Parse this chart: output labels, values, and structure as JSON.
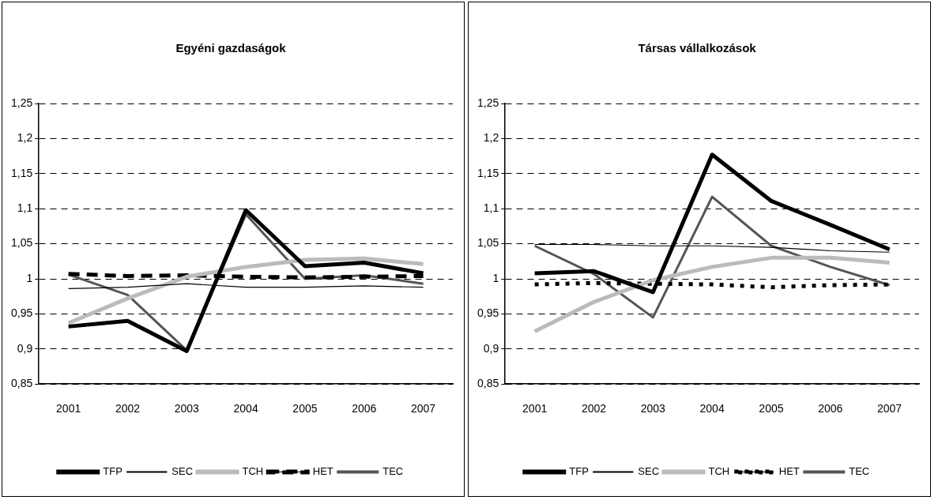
{
  "chart_data": [
    {
      "type": "line",
      "title": "Egyéni gazdaságok",
      "categories": [
        "2001",
        "2002",
        "2003",
        "2004",
        "2005",
        "2006",
        "2007"
      ],
      "ylim": [
        0.85,
        1.25
      ],
      "yticks": [
        {
          "value": 0.85,
          "label": "0,85"
        },
        {
          "value": 0.9,
          "label": "0,9"
        },
        {
          "value": 0.95,
          "label": "0,95"
        },
        {
          "value": 1,
          "label": "1"
        },
        {
          "value": 1.05,
          "label": "1,05"
        },
        {
          "value": 1.1,
          "label": "1,1"
        },
        {
          "value": 1.15,
          "label": "1,15"
        },
        {
          "value": 1.2,
          "label": "1,2"
        },
        {
          "value": 1.25,
          "label": "1,25"
        }
      ],
      "grid": "y",
      "legend": "bottom",
      "marker": "none",
      "series": [
        {
          "name": "TFP",
          "color": "#000000",
          "line_style": "solid",
          "values": [
            0.932,
            0.94,
            0.897,
            1.098,
            1.018,
            1.023,
            1.008
          ]
        },
        {
          "name": "SEC",
          "color": "#000000",
          "line_style": "solid",
          "values": [
            0.986,
            0.988,
            0.993,
            0.988,
            0.988,
            0.99,
            0.988
          ]
        },
        {
          "name": "TCH",
          "color": "#bbbbbb",
          "line_style": "solid",
          "values": [
            0.937,
            0.972,
            1.003,
            1.017,
            1.027,
            1.029,
            1.021
          ]
        },
        {
          "name": "HET",
          "color": "#000000",
          "line_style": "dashed",
          "values": [
            1.007,
            1.004,
            1.005,
            1.003,
            1.002,
            1.003,
            1.004
          ]
        },
        {
          "name": "TEC",
          "color": "#555555",
          "line_style": "solid",
          "values": [
            1.006,
            0.977,
            0.898,
            1.092,
            1.0,
            1.005,
            0.993
          ]
        }
      ]
    },
    {
      "type": "line",
      "title": "Társas vállalkozások",
      "categories": [
        "2001",
        "2002",
        "2003",
        "2004",
        "2005",
        "2006",
        "2007"
      ],
      "ylim": [
        0.85,
        1.25
      ],
      "yticks": [
        {
          "value": 0.85,
          "label": "0,85"
        },
        {
          "value": 0.9,
          "label": "0,9"
        },
        {
          "value": 0.95,
          "label": "0,95"
        },
        {
          "value": 1,
          "label": "1"
        },
        {
          "value": 1.05,
          "label": "1,05"
        },
        {
          "value": 1.1,
          "label": "1,1"
        },
        {
          "value": 1.15,
          "label": "1,15"
        },
        {
          "value": 1.2,
          "label": "1,2"
        },
        {
          "value": 1.25,
          "label": "1,25"
        }
      ],
      "grid": "y",
      "legend": "bottom",
      "marker": "none",
      "series": [
        {
          "name": "TFP",
          "color": "#000000",
          "line_style": "solid",
          "values": [
            1.008,
            1.011,
            0.981,
            1.177,
            1.111,
            1.077,
            1.042
          ]
        },
        {
          "name": "SEC",
          "color": "#000000",
          "line_style": "solid",
          "values": [
            1.049,
            1.049,
            1.047,
            1.047,
            1.045,
            1.04,
            1.038
          ]
        },
        {
          "name": "TCH",
          "color": "#bbbbbb",
          "line_style": "solid",
          "values": [
            0.925,
            0.967,
            0.998,
            1.017,
            1.03,
            1.03,
            1.023
          ]
        },
        {
          "name": "HET",
          "color": "#000000",
          "line_style": "dotted",
          "values": [
            0.992,
            0.994,
            0.993,
            0.992,
            0.988,
            0.991,
            0.992
          ]
        },
        {
          "name": "TEC",
          "color": "#555555",
          "line_style": "solid",
          "values": [
            1.047,
            1.007,
            0.945,
            1.117,
            1.047,
            1.017,
            0.991
          ]
        }
      ]
    }
  ]
}
